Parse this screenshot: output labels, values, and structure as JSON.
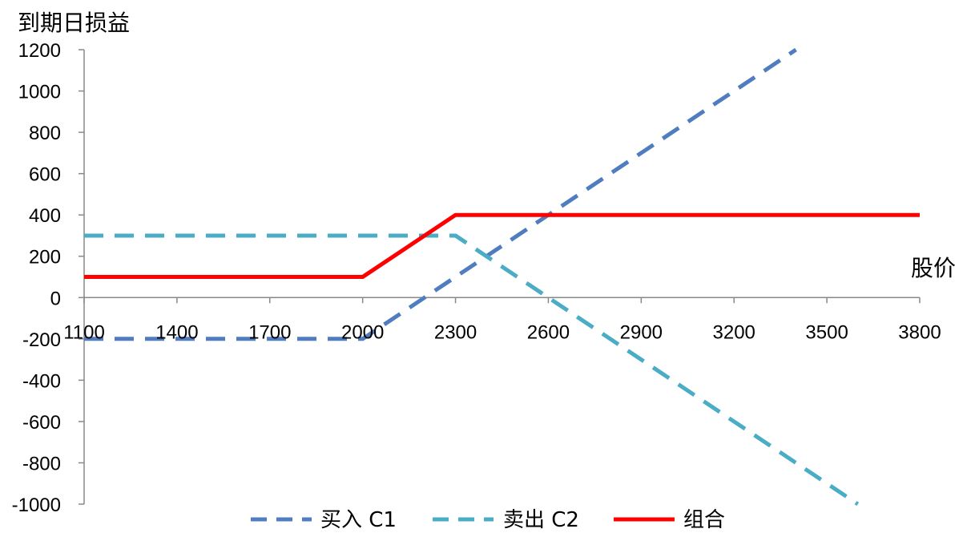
{
  "chart_data": {
    "type": "line",
    "ylabel": "到期日损益",
    "xlabel": "股价",
    "xlim": [
      1100,
      3800
    ],
    "ylim": [
      -1000,
      1200
    ],
    "x_ticks": [
      1100,
      1400,
      1700,
      2000,
      2300,
      2600,
      2900,
      3200,
      3500,
      3800
    ],
    "y_ticks": [
      -1000,
      -800,
      -600,
      -400,
      -200,
      0,
      200,
      400,
      600,
      800,
      1000,
      1200
    ],
    "grid": false,
    "legend_position": "bottom",
    "series": [
      {
        "name": "买入 C1",
        "style": "dashed",
        "color": "#4F7DC0",
        "points": [
          [
            1100,
            -200
          ],
          [
            2000,
            -200
          ],
          [
            3400,
            1200
          ]
        ]
      },
      {
        "name": "卖出 C2",
        "style": "dashed",
        "color": "#4BACC6",
        "points": [
          [
            1100,
            300
          ],
          [
            2300,
            300
          ],
          [
            3600,
            -1000
          ]
        ]
      },
      {
        "name": "组合",
        "style": "solid",
        "color": "#FF0000",
        "points": [
          [
            1100,
            100
          ],
          [
            2000,
            100
          ],
          [
            2300,
            400
          ],
          [
            3800,
            400
          ]
        ]
      }
    ]
  }
}
